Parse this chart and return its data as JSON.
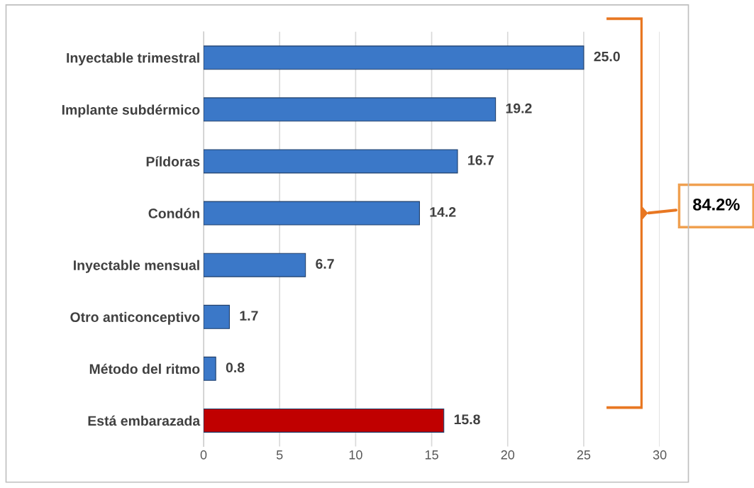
{
  "chart_data": {
    "type": "bar",
    "orientation": "horizontal",
    "categories": [
      "Inyectable trimestral",
      "Implante subdérmico",
      "Píldoras",
      "Condón",
      "Inyectable mensual",
      "Otro anticonceptivo",
      "Método del ritmo",
      "Está embarazada"
    ],
    "values": [
      25.0,
      19.2,
      16.7,
      14.2,
      6.7,
      1.7,
      0.8,
      15.8
    ],
    "colors": [
      "#3b78c8",
      "#3b78c8",
      "#3b78c8",
      "#3b78c8",
      "#3b78c8",
      "#3b78c8",
      "#3b78c8",
      "#c00000"
    ],
    "value_labels": [
      "25.0",
      "19.2",
      "16.7",
      "14.2",
      "6.7",
      "1.7",
      "0.8",
      "15.8"
    ],
    "xlim": [
      0,
      30
    ],
    "xticks": [
      0,
      5,
      10,
      15,
      20,
      25,
      30
    ],
    "grid": "x",
    "annotations": [
      "84.2%"
    ]
  }
}
